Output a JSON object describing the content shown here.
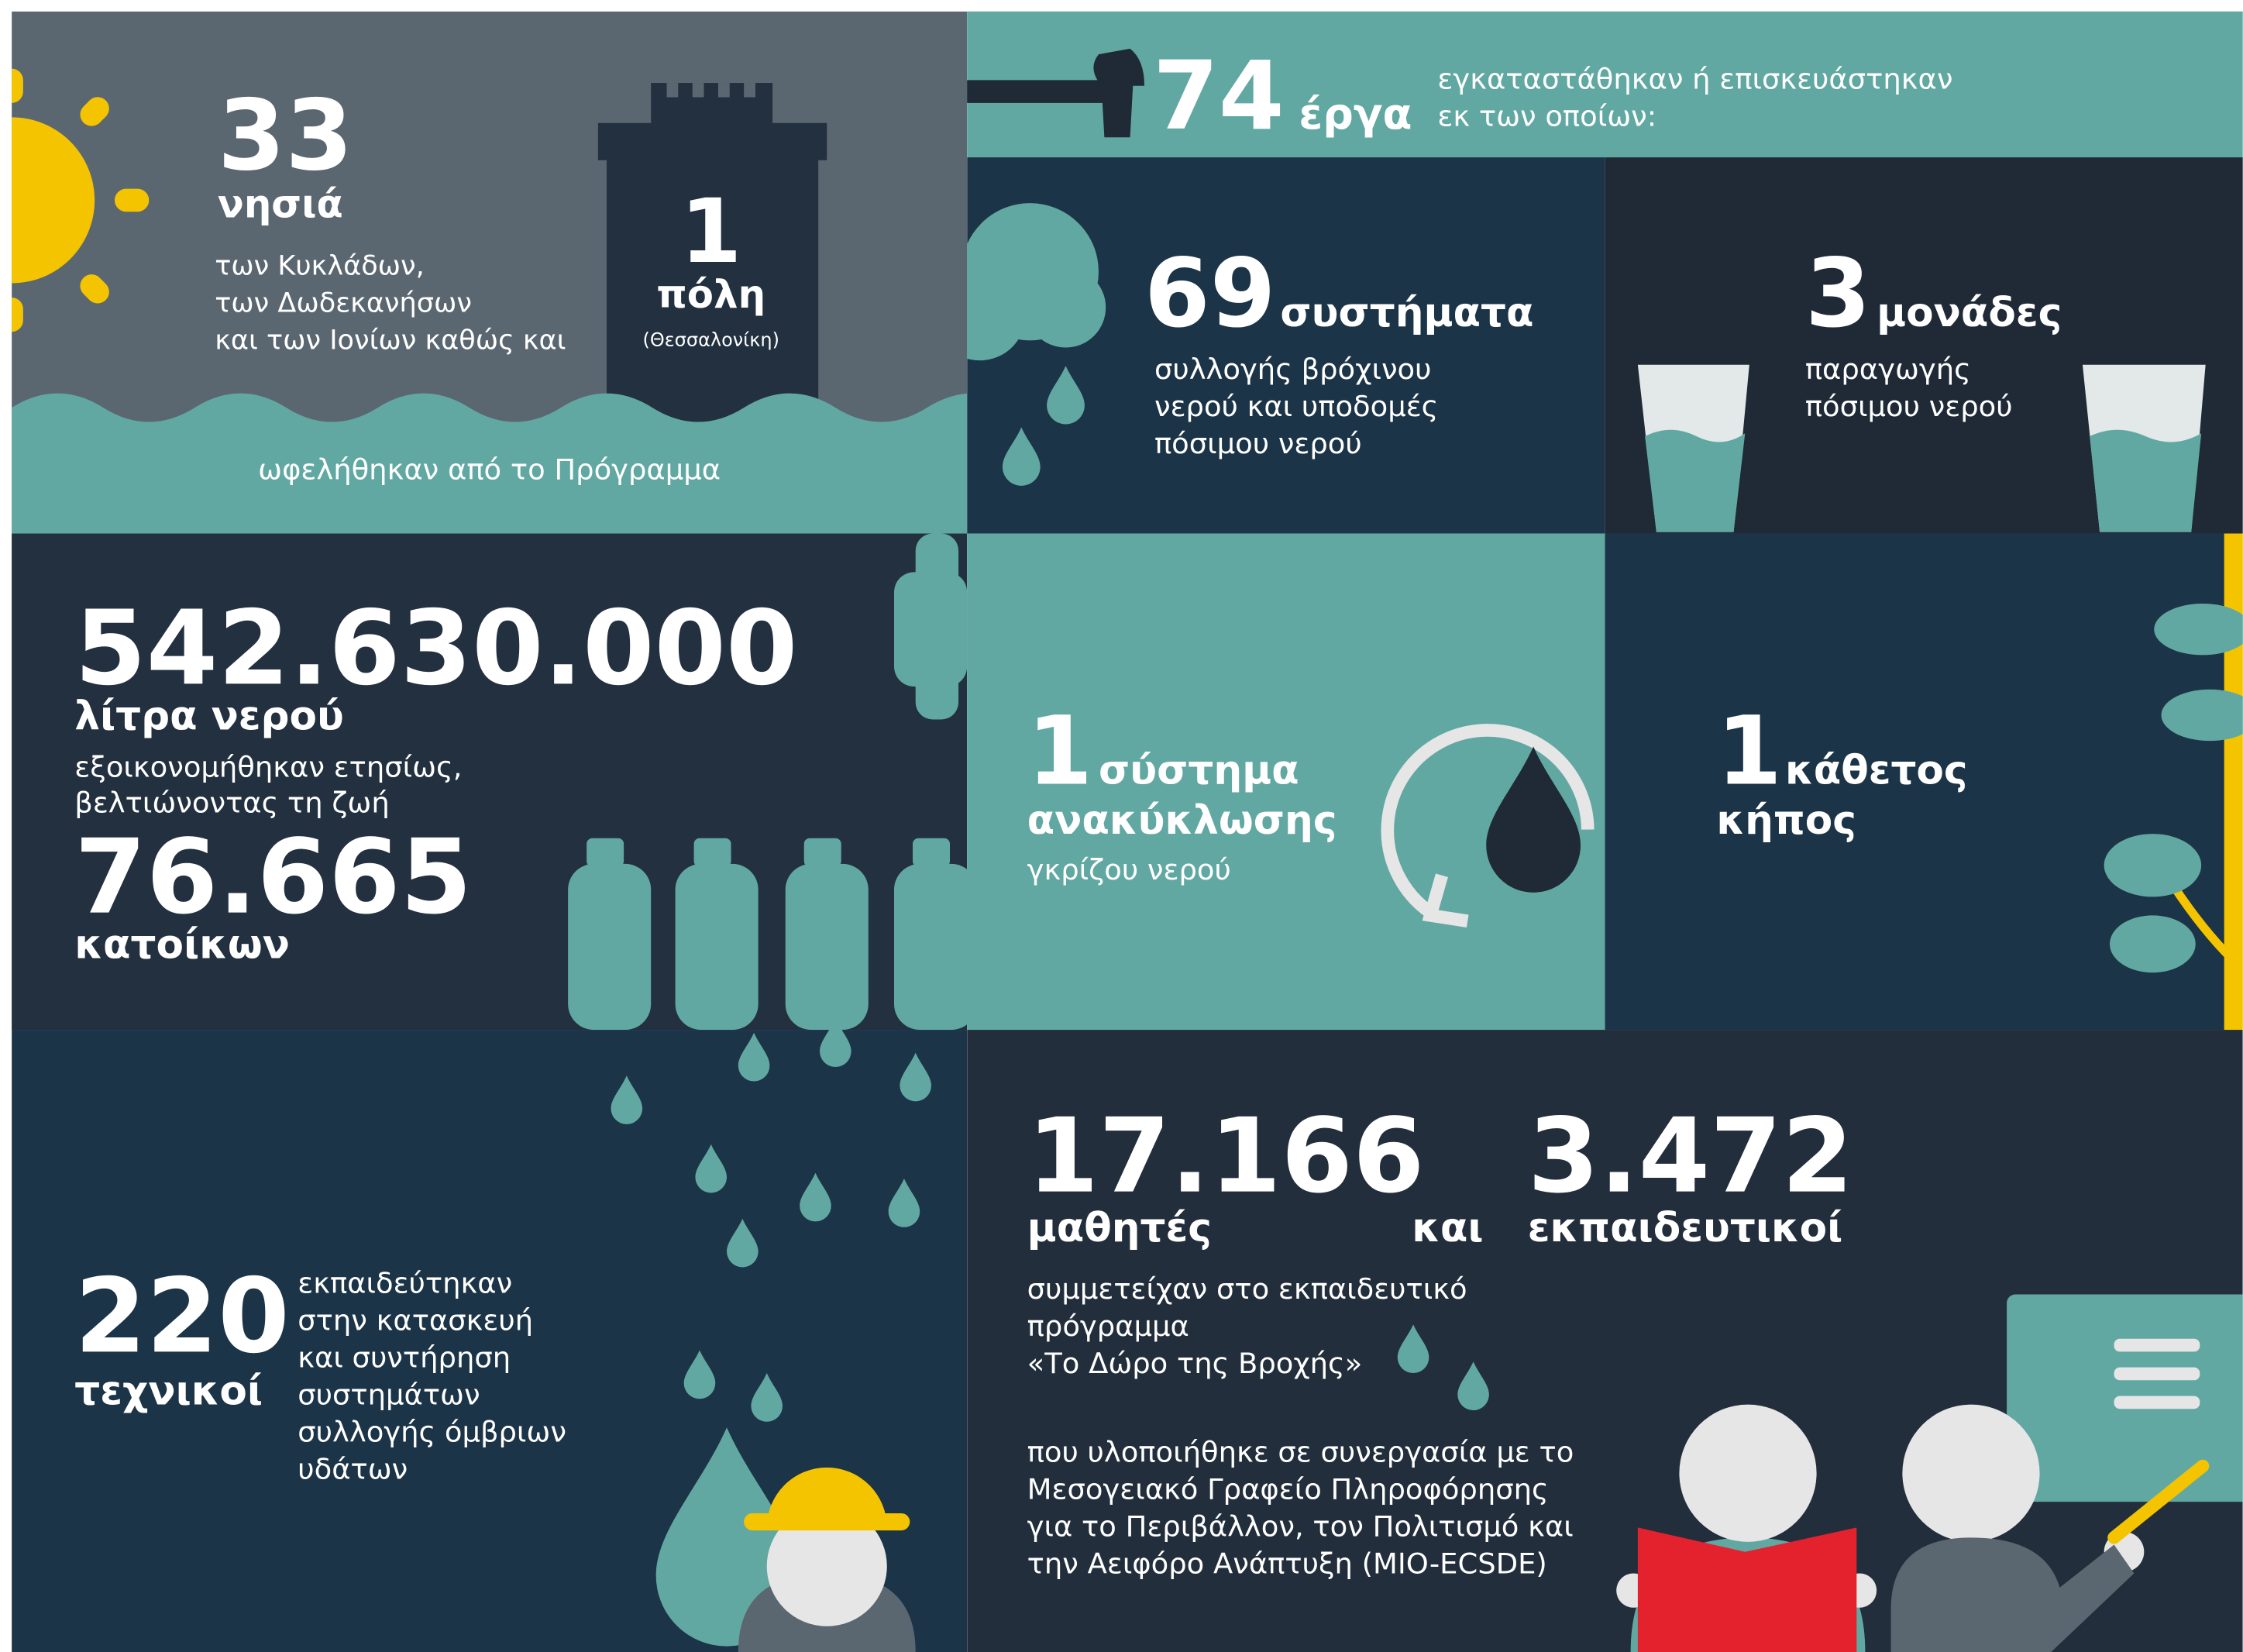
{
  "islands": {
    "number": "33",
    "unit": "νησιά",
    "text": [
      "των Κυκλάδων,",
      "των Δωδεκανήσων",
      "και των Ιονίων καθώς και"
    ]
  },
  "city": {
    "number": "1",
    "unit": "πόλη",
    "note": "(Θεσσαλονίκη)"
  },
  "benefit": "ωφελήθηκαν από το Πρόγραμμα",
  "projects": {
    "number": "74",
    "unit": "έργα",
    "text": [
      "εγκαταστάθηκαν ή επισκευάστηκαν",
      "εκ των οποίων:"
    ]
  },
  "systems": {
    "number": "69",
    "unit": "συστήματα",
    "text": [
      "συλλογής βρόχινου",
      "νερού και υποδομές",
      "πόσιμου νερού"
    ]
  },
  "units": {
    "number": "3",
    "unit": "μονάδες",
    "text": [
      "παραγωγής",
      "πόσιμου νερού"
    ]
  },
  "water": {
    "number": "542.630.000",
    "unit": "λίτρα νερού",
    "text": [
      "εξοικονομήθηκαν ετησίως,",
      "βελτιώνοντας τη ζωή"
    ],
    "residents_number": "76.665",
    "residents_unit": "κατοίκων"
  },
  "recycling": {
    "number": "1",
    "unit": [
      "σύστημα",
      "ανακύκλωσης"
    ],
    "text": "γκρίζου νερού"
  },
  "garden": {
    "number": "1",
    "unit": [
      "κάθετος",
      "κήπος"
    ]
  },
  "technicians": {
    "number": "220",
    "unit": "τεχνικοί",
    "text": [
      "εκπαιδεύτηκαν",
      "στην κατασκευή",
      "και συντήρηση",
      "συστημάτων",
      "συλλογής όμβριων",
      "υδάτων"
    ]
  },
  "education": {
    "students_number": "17.166",
    "students_unit": "μαθητές",
    "conjunction": "και",
    "teachers_number": "3.472",
    "teachers_unit": "εκπαιδευτικοί",
    "text": [
      "συμμετείχαν στο εκπαιδευτικό",
      "πρόγραμμα",
      "«Το Δώρο της Βροχής»"
    ],
    "partner": [
      "που υλοποιήθηκε σε συνεργασία με το",
      "Μεσογειακό Γραφείο Πληροφόρησης",
      "για το Περιβάλλον, τον Πολιτισμό και",
      "την Αειφόρο Ανάπτυξη (MIO-ECSDE)"
    ]
  }
}
